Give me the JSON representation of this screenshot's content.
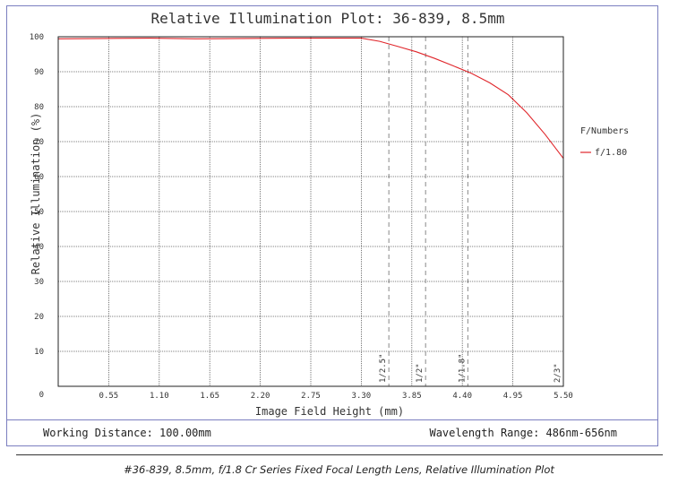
{
  "chart_data": {
    "type": "line",
    "title": "Relative Illumination Plot: 36-839, 8.5mm",
    "xlabel": "Image Field Height (mm)",
    "ylabel": "Relative Illumination (%)",
    "xlim": [
      0,
      5.5
    ],
    "ylim": [
      0,
      100
    ],
    "xticks": [
      "0.55",
      "1.10",
      "1.65",
      "2.20",
      "2.75",
      "3.30",
      "3.85",
      "4.40",
      "4.95",
      "5.50"
    ],
    "yticks": [
      "0",
      "10",
      "20",
      "30",
      "40",
      "50",
      "60",
      "70",
      "80",
      "90",
      "100"
    ],
    "grid": true,
    "legend_title": "F/Numbers",
    "legend_position": "right",
    "series": [
      {
        "name": "f/1.80",
        "color": "#e0262b",
        "x": [
          0,
          0.5,
          1.0,
          1.5,
          2.0,
          2.5,
          3.0,
          3.3,
          3.5,
          3.7,
          3.9,
          4.1,
          4.3,
          4.5,
          4.7,
          4.9,
          5.1,
          5.3,
          5.5
        ],
        "y": [
          99.4,
          99.5,
          99.6,
          99.4,
          99.5,
          99.6,
          99.6,
          99.6,
          98.7,
          97.2,
          95.7,
          93.8,
          91.7,
          89.5,
          86.8,
          83.4,
          78.3,
          72.1,
          65.2
        ]
      }
    ],
    "sensor_markers": [
      {
        "label": "1/2.5\"",
        "x": 3.6
      },
      {
        "label": "1/2\"",
        "x": 4.0
      },
      {
        "label": "1/1.8\"",
        "x": 4.46
      },
      {
        "label": "2/3\"",
        "x": 5.5
      }
    ]
  },
  "footer": {
    "working_distance": "Working Distance: 100.00mm",
    "wavelength_range": "Wavelength Range: 486nm-656nm"
  },
  "caption": "#36-839, 8.5mm, f/1.8 Cr Series Fixed Focal Length Lens, Relative Illumination Plot"
}
